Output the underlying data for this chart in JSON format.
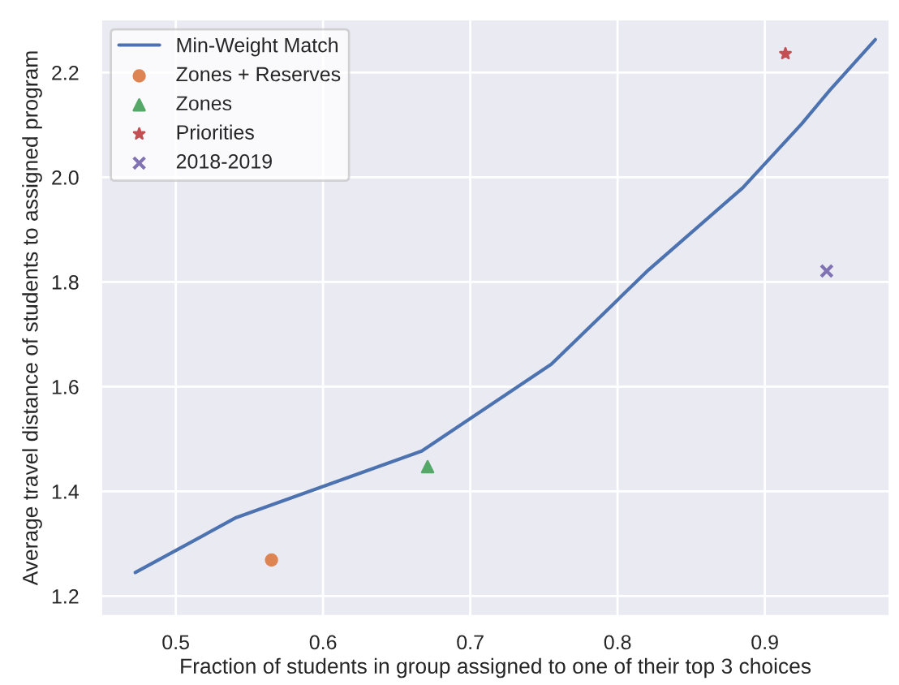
{
  "chart_data": {
    "type": "line",
    "xlabel": "Fraction of students in group assigned to one of their top 3 choices",
    "ylabel": "Average travel distance of students to assigned program",
    "xlim": [
      0.449,
      0.985
    ],
    "ylim": [
      1.161,
      2.302
    ],
    "xticks": [
      0.5,
      0.6,
      0.7,
      0.8,
      0.9
    ],
    "yticks": [
      {
        "value": 1.2,
        "label": "1.2"
      },
      {
        "value": 1.4,
        "label": "1.4"
      },
      {
        "value": 1.6,
        "label": "1.6"
      },
      {
        "value": 1.8,
        "label": "1.8"
      },
      {
        "value": 2.0,
        "label": "2.0"
      },
      {
        "value": 2.2,
        "label": "2.2"
      }
    ],
    "grid": true,
    "legend": "top left",
    "series": [
      {
        "name": "Min-Weight Match",
        "color": "#4c72b0",
        "marker": "none",
        "x": [
          0.4725,
          0.541,
          0.667,
          0.755,
          0.821,
          0.885,
          0.925,
          0.944,
          0.975
        ],
        "values": [
          1.245,
          1.35,
          1.477,
          1.643,
          1.823,
          1.98,
          2.102,
          2.166,
          2.263
        ]
      },
      {
        "name": "Zones + Reserves",
        "type": "scatter",
        "color": "#dd8452",
        "marker": "circle",
        "x": [
          0.565
        ],
        "values": [
          1.269
        ]
      },
      {
        "name": "Zones",
        "type": "scatter",
        "color": "#55a868",
        "marker": "triangle",
        "x": [
          0.671
        ],
        "values": [
          1.447
        ]
      },
      {
        "name": "Priorities",
        "type": "scatter",
        "color": "#c44e52",
        "marker": "star",
        "x": [
          0.914
        ],
        "values": [
          2.236
        ]
      },
      {
        "name": "2018-2019",
        "type": "scatter",
        "color": "#8172b3",
        "marker": "cross",
        "x": [
          0.942
        ],
        "values": [
          1.821
        ]
      }
    ]
  }
}
